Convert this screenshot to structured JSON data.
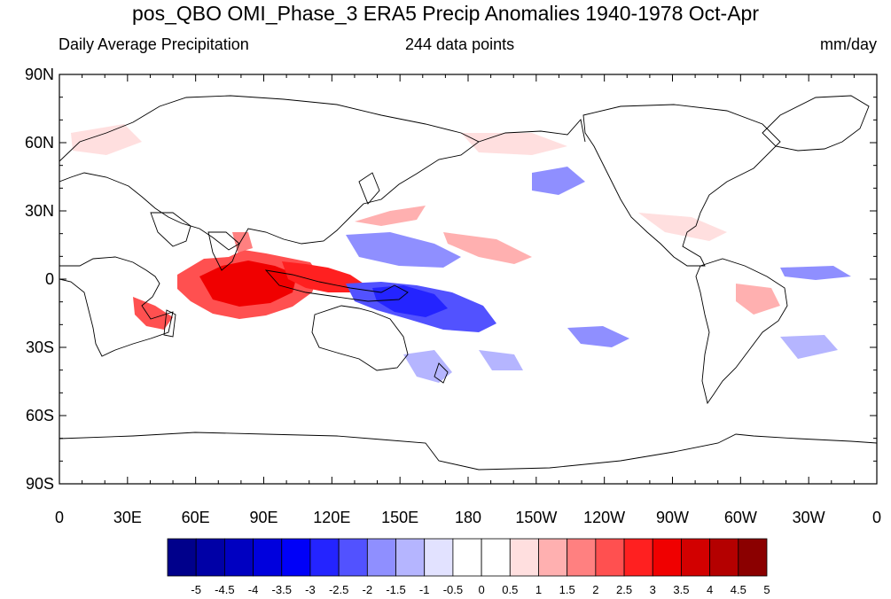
{
  "title": "pos_QBO OMI_Phase_3 ERA5 Precip Anomalies 1940-1978 Oct-Apr",
  "subtitle_left": "Daily Average Precipitation",
  "subtitle_center": "244 data points",
  "subtitle_right": "mm/day",
  "map": {
    "y_ticks": [
      "90N",
      "60N",
      "30N",
      "0",
      "30S",
      "60S",
      "90S"
    ],
    "x_ticks": [
      "0",
      "30E",
      "60E",
      "90E",
      "120E",
      "150E",
      "180",
      "150W",
      "120W",
      "90W",
      "60W",
      "30W",
      "0"
    ]
  },
  "colorbar": {
    "labels": [
      "-5",
      "-4.5",
      "-4",
      "-3.5",
      "-3",
      "-2.5",
      "-2",
      "-1.5",
      "-1",
      "-0.5",
      "0",
      "0.5",
      "1",
      "1.5",
      "2",
      "2.5",
      "3",
      "3.5",
      "4",
      "4.5",
      "5"
    ],
    "colors": [
      "#00008b",
      "#0000a6",
      "#0000c1",
      "#0000dd",
      "#0000f8",
      "#2424ff",
      "#5252ff",
      "#8f8fff",
      "#b5b5ff",
      "#e2e2ff",
      "#ffffff",
      "#ffffff",
      "#ffdfdf",
      "#ffb0b0",
      "#ff8080",
      "#ff5050",
      "#ff2020",
      "#f00000",
      "#d20000",
      "#b40000",
      "#8b0000"
    ]
  }
}
